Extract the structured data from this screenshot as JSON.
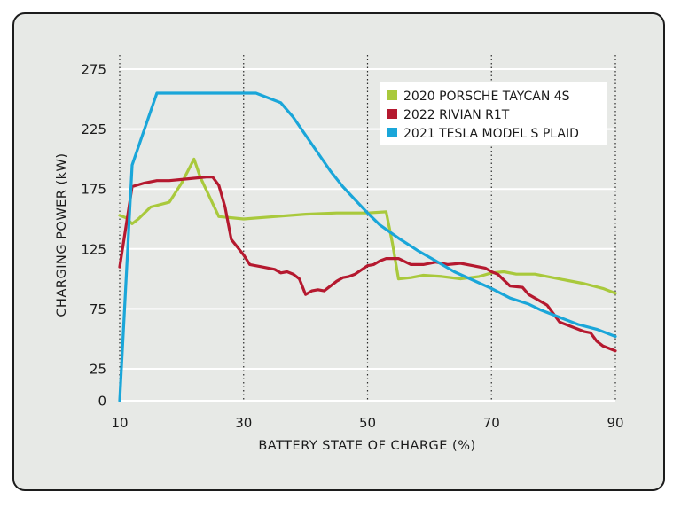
{
  "chart_data": {
    "type": "line",
    "xlabel": "BATTERY STATE OF CHARGE (%)",
    "ylabel": "CHARGING POWER (kW)",
    "xlim": [
      10,
      90
    ],
    "ylim": [
      0,
      280
    ],
    "x_ticks": [
      "10",
      "30",
      "50",
      "70",
      "90"
    ],
    "y_ticks": [
      "0",
      "25",
      "75",
      "125",
      "175",
      "225",
      "275"
    ],
    "x_tick_values": [
      10,
      30,
      50,
      70,
      90
    ],
    "y_tick_values": [
      0,
      25,
      75,
      125,
      175,
      225,
      275
    ],
    "grid": "horizontal solid, vertical dotted",
    "legend_position": "top-right",
    "series": [
      {
        "name": "2020 PORSCHE TAYCAN 4S",
        "color": "#a9c93c",
        "points": [
          [
            10,
            153
          ],
          [
            11,
            151
          ],
          [
            12,
            146
          ],
          [
            13,
            150
          ],
          [
            15,
            160
          ],
          [
            18,
            164
          ],
          [
            20,
            180
          ],
          [
            22,
            200
          ],
          [
            23,
            185
          ],
          [
            25,
            163
          ],
          [
            26,
            152
          ],
          [
            28,
            151
          ],
          [
            30,
            150
          ],
          [
            35,
            152
          ],
          [
            40,
            154
          ],
          [
            45,
            155
          ],
          [
            50,
            155
          ],
          [
            53,
            156
          ],
          [
            54,
            130
          ],
          [
            55,
            100
          ],
          [
            57,
            101
          ],
          [
            59,
            103
          ],
          [
            62,
            102
          ],
          [
            65,
            100
          ],
          [
            68,
            102
          ],
          [
            70,
            105
          ],
          [
            72,
            106
          ],
          [
            74,
            104
          ],
          [
            77,
            104
          ],
          [
            79,
            102
          ],
          [
            82,
            99
          ],
          [
            85,
            96
          ],
          [
            88,
            92
          ],
          [
            90,
            88
          ]
        ]
      },
      {
        "name": "2022 RIVIAN R1T",
        "color": "#b5192f",
        "points": [
          [
            10,
            110
          ],
          [
            12,
            177
          ],
          [
            14,
            180
          ],
          [
            16,
            182
          ],
          [
            18,
            182
          ],
          [
            20,
            183
          ],
          [
            22,
            184
          ],
          [
            24,
            185
          ],
          [
            25,
            185
          ],
          [
            26,
            178
          ],
          [
            27,
            160
          ],
          [
            28,
            133
          ],
          [
            30,
            120
          ],
          [
            31,
            112
          ],
          [
            33,
            110
          ],
          [
            35,
            108
          ],
          [
            36,
            105
          ],
          [
            37,
            106
          ],
          [
            38,
            104
          ],
          [
            39,
            100
          ],
          [
            40,
            87
          ],
          [
            41,
            90
          ],
          [
            42,
            91
          ],
          [
            43,
            90
          ],
          [
            44,
            94
          ],
          [
            45,
            98
          ],
          [
            46,
            101
          ],
          [
            47,
            102
          ],
          [
            48,
            104
          ],
          [
            50,
            111
          ],
          [
            51,
            112
          ],
          [
            52,
            115
          ],
          [
            53,
            117
          ],
          [
            55,
            117
          ],
          [
            57,
            112
          ],
          [
            59,
            112
          ],
          [
            61,
            114
          ],
          [
            63,
            112
          ],
          [
            65,
            113
          ],
          [
            67,
            111
          ],
          [
            69,
            109
          ],
          [
            70,
            106
          ],
          [
            71,
            104
          ],
          [
            73,
            94
          ],
          [
            75,
            93
          ],
          [
            76,
            87
          ],
          [
            77,
            84
          ],
          [
            79,
            78
          ],
          [
            80,
            71
          ],
          [
            81,
            64
          ],
          [
            82,
            62
          ],
          [
            84,
            58
          ],
          [
            85,
            56
          ],
          [
            86,
            55
          ],
          [
            87,
            48
          ],
          [
            88,
            44
          ],
          [
            89,
            42
          ],
          [
            90,
            40
          ]
        ]
      },
      {
        "name": "2021 TESLA MODEL S PLAID",
        "color": "#1aa6d9",
        "points": [
          [
            10,
            0
          ],
          [
            12,
            195
          ],
          [
            16,
            255
          ],
          [
            24,
            255
          ],
          [
            32,
            255
          ],
          [
            36,
            247
          ],
          [
            38,
            235
          ],
          [
            40,
            220
          ],
          [
            42,
            205
          ],
          [
            44,
            190
          ],
          [
            46,
            177
          ],
          [
            48,
            166
          ],
          [
            50,
            155
          ],
          [
            52,
            145
          ],
          [
            55,
            134
          ],
          [
            58,
            124
          ],
          [
            61,
            115
          ],
          [
            64,
            106
          ],
          [
            67,
            99
          ],
          [
            70,
            92
          ],
          [
            73,
            84
          ],
          [
            76,
            79
          ],
          [
            78,
            74
          ],
          [
            81,
            68
          ],
          [
            84,
            62
          ],
          [
            87,
            58
          ],
          [
            90,
            52
          ]
        ]
      }
    ]
  }
}
